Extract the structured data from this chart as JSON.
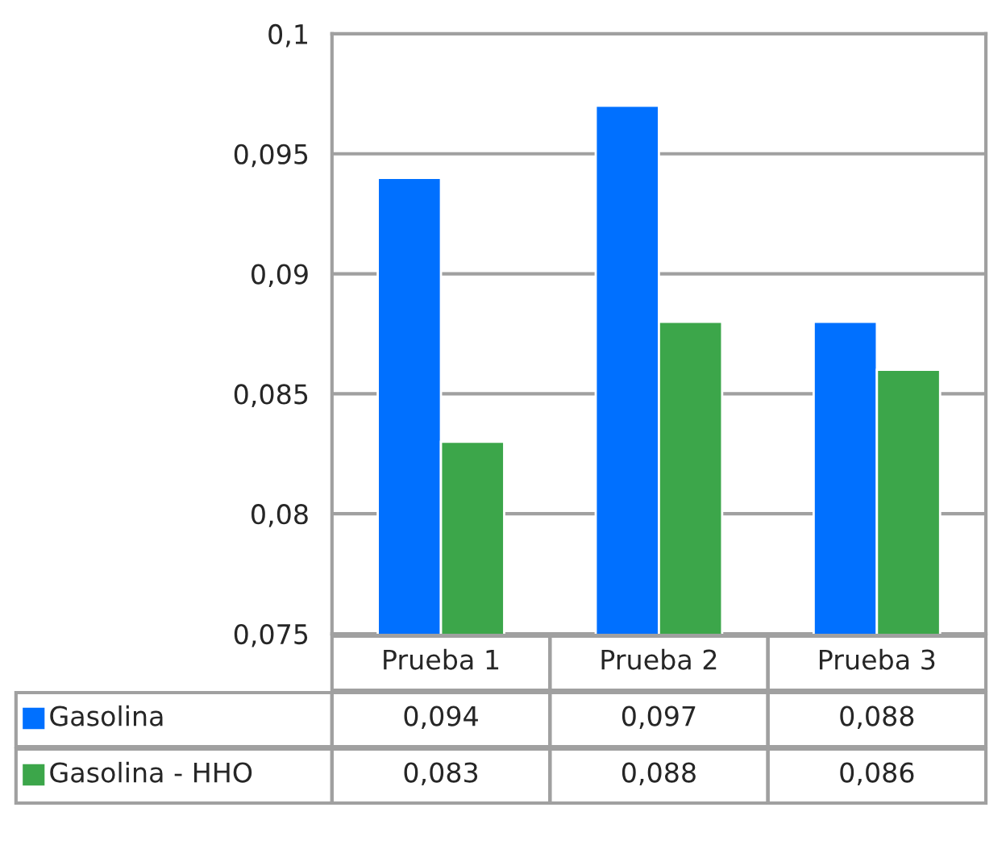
{
  "chart_data": {
    "type": "bar",
    "categories": [
      "Prueba 1",
      "Prueba 2",
      "Prueba 3"
    ],
    "series": [
      {
        "name": "Gasolina",
        "color": "#0070ff",
        "values": [
          0.094,
          0.097,
          0.088
        ],
        "value_labels": [
          "0,094",
          "0,097",
          "0,088"
        ]
      },
      {
        "name": "Gasolina - HHO",
        "color": "#3ca64a",
        "values": [
          0.083,
          0.088,
          0.086
        ],
        "value_labels": [
          "0,083",
          "0,088",
          "0,086"
        ]
      }
    ],
    "ylim": [
      0.075,
      0.1
    ],
    "yticks": [
      {
        "value": 0.075,
        "label": "0,075"
      },
      {
        "value": 0.08,
        "label": "0,08"
      },
      {
        "value": 0.085,
        "label": "0,085"
      },
      {
        "value": 0.09,
        "label": "0,09"
      },
      {
        "value": 0.095,
        "label": "0,095"
      },
      {
        "value": 0.1,
        "label": "0,1"
      }
    ],
    "grid": "y",
    "legend": "bottom"
  }
}
